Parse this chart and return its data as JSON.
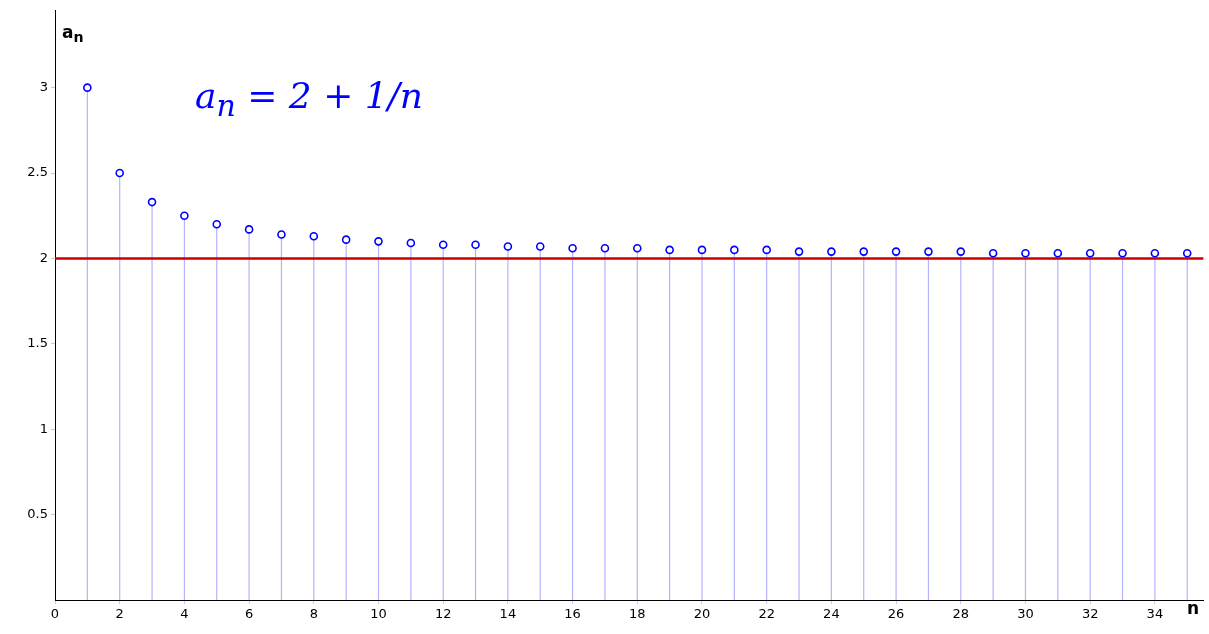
{
  "chart_data": {
    "type": "lollipop",
    "xlabel": "n",
    "ylabel": "a$_{n}$",
    "annotations": [
      "a$_{n}$ = 2 + 1/n"
    ],
    "x": [
      1,
      2,
      3,
      4,
      5,
      6,
      7,
      8,
      9,
      10,
      11,
      12,
      13,
      14,
      15,
      16,
      17,
      18,
      19,
      20,
      21,
      22,
      23,
      24,
      25,
      26,
      27,
      28,
      29,
      30,
      31,
      32,
      33,
      34,
      35
    ],
    "series": [
      {
        "color": "#0000ff",
        "values": [
          3,
          2.5,
          2.33,
          2.25,
          2.2,
          2.17,
          2.14,
          2.13,
          2.11,
          2.1,
          2.09,
          2.08,
          2.08,
          2.07,
          2.07,
          2.06,
          2.06,
          2.06,
          2.05,
          2.05,
          2.05,
          2.05,
          2.04,
          2.04,
          2.04,
          2.04,
          2.04,
          2.04,
          2.03,
          2.03,
          2.03,
          2.03,
          2.03,
          2.03,
          2.03
        ]
      }
    ],
    "xlim": [
      0,
      35.5
    ],
    "ylim": [
      0,
      3.45
    ],
    "xticks": [
      0,
      2,
      4,
      6,
      8,
      10,
      12,
      14,
      16,
      18,
      20,
      22,
      24,
      26,
      28,
      30,
      32,
      34
    ],
    "yticks": [
      0.5,
      1,
      1.5,
      2,
      2.5,
      3
    ],
    "ref_lines": [
      {
        "axis": "y",
        "value": 2,
        "color": "#cc0000"
      }
    ],
    "grid": false,
    "legend": false,
    "marker": "circle"
  }
}
